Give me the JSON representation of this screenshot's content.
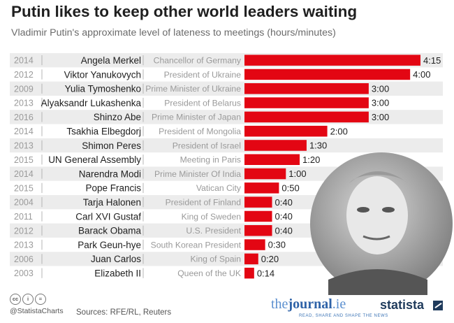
{
  "title": "Putin likes to keep other world leaders waiting",
  "subtitle": "Vladimir Putin's approximate level of lateness to meetings (hours/minutes)",
  "chart_data": {
    "type": "bar",
    "orientation": "horizontal",
    "value_unit": "minutes",
    "rows": [
      {
        "year": "2014",
        "name": "Angela Merkel",
        "role": "Chancellor of Germany",
        "minutes": 255,
        "label": "4:15"
      },
      {
        "year": "2012",
        "name": "Viktor Yanukovych",
        "role": "President of Ukraine",
        "minutes": 240,
        "label": "4:00"
      },
      {
        "year": "2009",
        "name": "Yulia Tymoshenko",
        "role": "Prime Minister of Ukraine",
        "minutes": 180,
        "label": "3:00"
      },
      {
        "year": "2013",
        "name": "Alyaksandr Lukashenka",
        "role": "President of Belarus",
        "minutes": 180,
        "label": "3:00"
      },
      {
        "year": "2016",
        "name": "Shinzo Abe",
        "role": "Prime Minister of Japan",
        "minutes": 180,
        "label": "3:00"
      },
      {
        "year": "2014",
        "name": "Tsakhia Elbegdorj",
        "role": "President of Mongolia",
        "minutes": 120,
        "label": "2:00"
      },
      {
        "year": "2013",
        "name": "Shimon Peres",
        "role": "President of Israel",
        "minutes": 90,
        "label": "1:30"
      },
      {
        "year": "2015",
        "name": "UN General Assembly",
        "role": "Meeting in Paris",
        "minutes": 80,
        "label": "1:20"
      },
      {
        "year": "2014",
        "name": "Narendra Modi",
        "role": "Prime Minister Of India",
        "minutes": 60,
        "label": "1:00"
      },
      {
        "year": "2015",
        "name": "Pope Francis",
        "role": "Vatican City",
        "minutes": 50,
        "label": "0:50"
      },
      {
        "year": "2004",
        "name": "Tarja Halonen",
        "role": "President of Finland",
        "minutes": 40,
        "label": "0:40"
      },
      {
        "year": "2011",
        "name": "Carl XVI Gustaf",
        "role": "King of Sweden",
        "minutes": 40,
        "label": "0:40"
      },
      {
        "year": "2012",
        "name": "Barack Obama",
        "role": "U.S. President",
        "minutes": 40,
        "label": "0:40"
      },
      {
        "year": "2013",
        "name": "Park Geun-hye",
        "role": "South Korean President",
        "minutes": 30,
        "label": "0:30"
      },
      {
        "year": "2006",
        "name": "Juan Carlos",
        "role": "King of Spain",
        "minutes": 20,
        "label": "0:20"
      },
      {
        "year": "2003",
        "name": "Elizabeth II",
        "role": "Queen of the UK",
        "minutes": 14,
        "label": "0:14"
      }
    ],
    "colors": {
      "bar": "#e30613",
      "stripe": "#ececec",
      "separator": "#b5b5b5"
    },
    "grid": false,
    "legend": "none"
  },
  "footer": {
    "cc_icon": "creative-commons-icon",
    "by_icon": "attribution-icon",
    "nd_icon": "no-derivatives-icon",
    "cc": "cc",
    "by": "i",
    "nd": "=",
    "handle": "@StatistaCharts",
    "sources": "Sources: RFE/RL, Reuters"
  },
  "logos": {
    "journal_the": "the",
    "journal_main": "journal",
    "journal_tld": ".ie",
    "journal_tagline": "READ, SHARE AND SHAPE THE NEWS",
    "statista": "statista"
  }
}
